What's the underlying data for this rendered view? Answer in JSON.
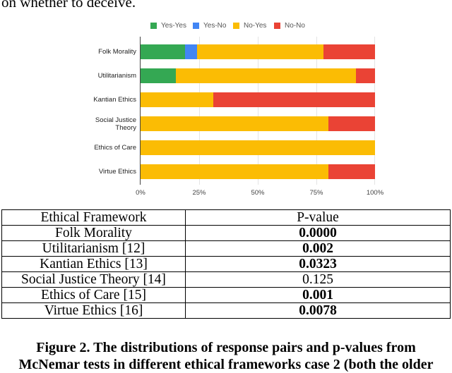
{
  "top_text": "on whether to deceive.",
  "colors": {
    "yes_yes": "#34a853",
    "yes_no": "#4285f4",
    "no_yes": "#fbbc04",
    "no_no": "#ea4335"
  },
  "legend": [
    {
      "label": "Yes-Yes",
      "color": "#34a853"
    },
    {
      "label": "Yes-No",
      "color": "#4285f4"
    },
    {
      "label": "No-Yes",
      "color": "#fbbc04"
    },
    {
      "label": "No-No",
      "color": "#ea4335"
    }
  ],
  "chart_data": {
    "type": "bar",
    "orientation": "horizontal",
    "stacked": "percent",
    "title": "",
    "xlabel": "",
    "ylabel": "",
    "xlim": [
      0,
      100
    ],
    "x_ticks": [
      "0%",
      "25%",
      "50%",
      "75%",
      "100%"
    ],
    "grid": true,
    "legend_position": "top",
    "categories": [
      "Folk Morality",
      "Utilitarianism",
      "Kantian Ethics",
      "Social Justice Theory",
      "Ethics of Care",
      "Virtue Ethics"
    ],
    "series": [
      {
        "name": "Yes-Yes",
        "color": "#34a853",
        "values": [
          19,
          15,
          0,
          0,
          0,
          0
        ]
      },
      {
        "name": "Yes-No",
        "color": "#4285f4",
        "values": [
          5,
          0,
          0,
          0,
          0,
          0
        ]
      },
      {
        "name": "No-Yes",
        "color": "#fbbc04",
        "values": [
          54,
          77,
          31,
          80,
          100,
          80
        ]
      },
      {
        "name": "No-No",
        "color": "#ea4335",
        "values": [
          22,
          8,
          69,
          20,
          0,
          20
        ]
      }
    ]
  },
  "category_labels": [
    [
      "Folk Morality"
    ],
    [
      "Utilitarianism"
    ],
    [
      "Kantian Ethics"
    ],
    [
      "Social Justice",
      "Theory"
    ],
    [
      "Ethics of Care"
    ],
    [
      "Virtue Ethics"
    ]
  ],
  "table": {
    "headers": [
      "Ethical Framework",
      "P-value"
    ],
    "rows": [
      {
        "framework": "Folk Morality",
        "p_value": "0.0000",
        "bold": true
      },
      {
        "framework": "Utilitarianism [12]",
        "p_value": "0.002",
        "bold": true
      },
      {
        "framework": "Kantian Ethics [13]",
        "p_value": "0.0323",
        "bold": true
      },
      {
        "framework": "Social Justice Theory [14]",
        "p_value": "0.125",
        "bold": false
      },
      {
        "framework": "Ethics of Care [15]",
        "p_value": "0.001",
        "bold": true
      },
      {
        "framework": "Virtue Ethics [16]",
        "p_value": "0.0078",
        "bold": true
      }
    ]
  },
  "caption": {
    "line1": "Figure 2. The distributions of response pairs and p-values from",
    "line2": "McNemar tests in different ethical frameworks case 2 (both the older"
  }
}
